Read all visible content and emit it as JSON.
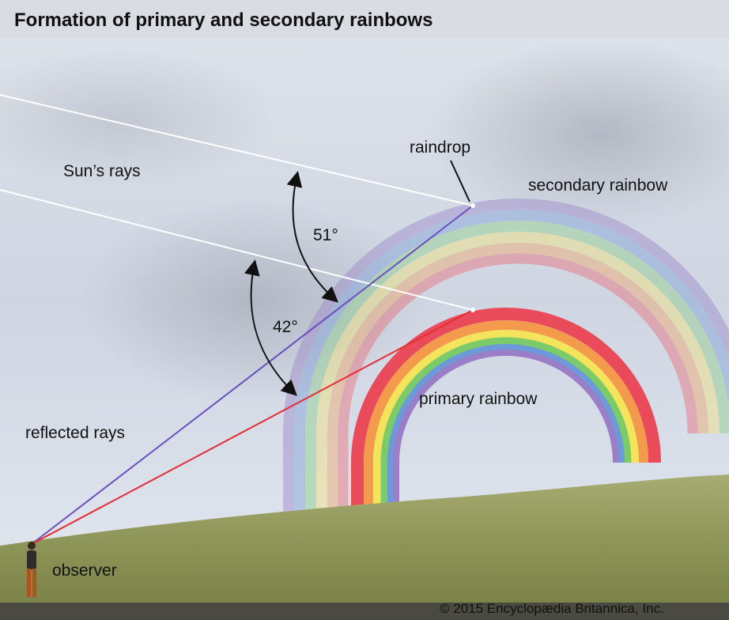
{
  "title": "Formation of primary and secondary rainbows",
  "labels": {
    "raindrop": "raindrop",
    "suns_rays": "Sun’s rays",
    "secondary_rainbow": "secondary rainbow",
    "angle_secondary": "51°",
    "angle_primary": "42°",
    "primary_rainbow": "primary rainbow",
    "reflected_rays": "reflected rays",
    "observer": "observer"
  },
  "credit": "© 2015 Encyclopædia Britannica, Inc."
}
